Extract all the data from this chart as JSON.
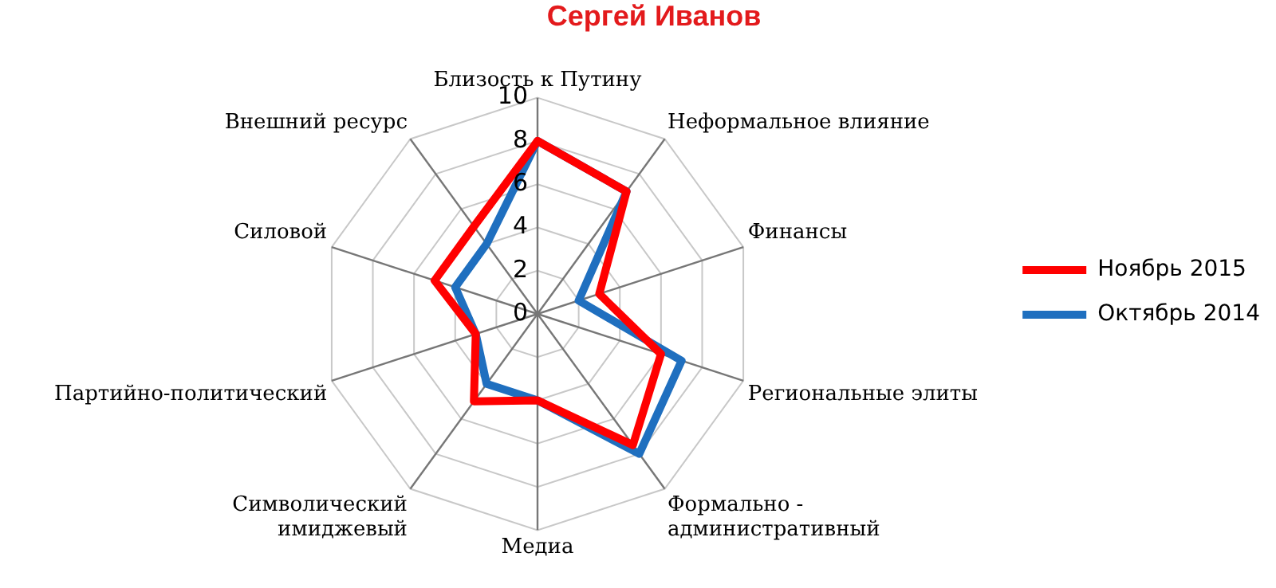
{
  "chart_data": {
    "type": "radar",
    "title": "Сергей Иванов",
    "categories": [
      "Близость к Путину",
      "Неформальное влияние",
      "Финансы",
      "Региональные элиты",
      "Формально - административный",
      "Медиа",
      "Символический имиджевый",
      "Партийно-политический",
      "Силовой",
      "Внешний ресурс"
    ],
    "series": [
      {
        "name": "Ноябрь 2015",
        "color": "#ff0000",
        "values": [
          8,
          7,
          3,
          6,
          7.5,
          4,
          5,
          3,
          5,
          5
        ]
      },
      {
        "name": "Октябрь 2014",
        "color": "#1f6fbf",
        "values": [
          8,
          7,
          2,
          7,
          8,
          4,
          4,
          3,
          4,
          4
        ]
      }
    ],
    "ylim": [
      0,
      10
    ],
    "yticks": [
      0,
      2,
      4,
      6,
      8,
      10
    ],
    "grid": true,
    "legend": "right"
  }
}
